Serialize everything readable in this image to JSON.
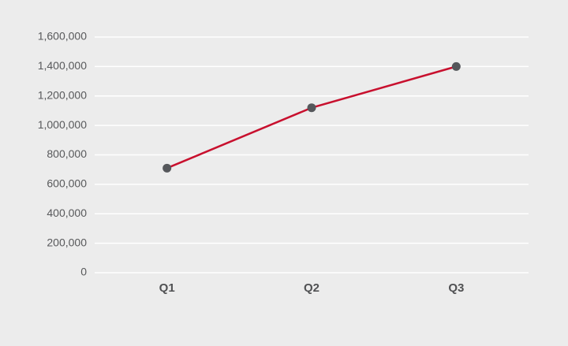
{
  "chart_data": {
    "type": "line",
    "categories": [
      "Q1",
      "Q2",
      "Q3"
    ],
    "values": [
      710000,
      1120000,
      1400000
    ],
    "color": "#c8102e",
    "marker_color": "#55575b",
    "ylim": [
      0,
      1600000
    ],
    "yticks": [
      0,
      {
        "value": 200000,
        "label": "200,000"
      },
      {
        "value": 400000,
        "label": "400,000"
      },
      {
        "value": 600000,
        "label": "600,000"
      },
      {
        "value": 800000,
        "label": "800,000"
      },
      {
        "value": 1000000,
        "label": "1,000,000"
      },
      {
        "value": 1200000,
        "label": "1,200,000"
      },
      {
        "value": 1400000,
        "label": "1,400,000"
      },
      {
        "value": 1600000,
        "label": "1,600,000"
      }
    ],
    "grid": true
  }
}
